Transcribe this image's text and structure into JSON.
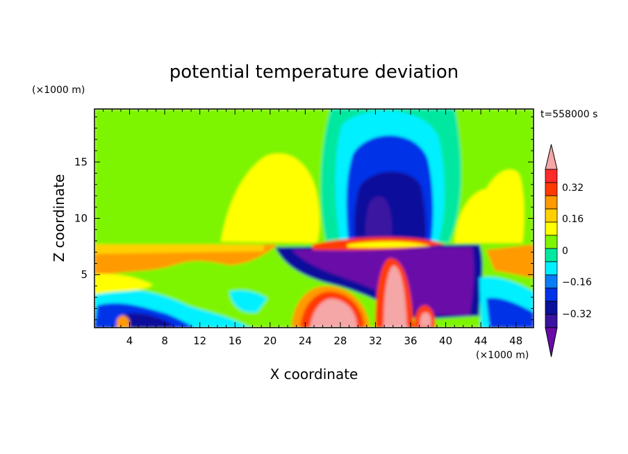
{
  "chart_data": {
    "type": "heatmap",
    "title": "potential temperature deviation",
    "xlabel": "X coordinate",
    "ylabel": "Z coordinate",
    "x_unit": "(×1000 m)",
    "y_unit": "(×1000 m)",
    "time_label": "t=558000 s",
    "xlim": [
      0,
      50
    ],
    "ylim": [
      0.3,
      19.7
    ],
    "x_ticks": [
      "4",
      "8",
      "12",
      "16",
      "20",
      "24",
      "28",
      "32",
      "36",
      "40",
      "44",
      "48"
    ],
    "y_ticks": [
      "5",
      "10",
      "15"
    ],
    "x_tick_values": [
      4,
      8,
      12,
      16,
      20,
      24,
      28,
      32,
      36,
      40,
      44,
      48
    ],
    "y_tick_values": [
      5,
      10,
      15
    ],
    "colorbar": {
      "levels": [
        -0.44,
        -0.4,
        -0.32,
        -0.24,
        -0.16,
        -0.08,
        0,
        0.08,
        0.16,
        0.24,
        0.32,
        0.4,
        0.44
      ],
      "colors": [
        "#6a0aa8",
        "#3a12a0",
        "#0a0f9c",
        "#0032e8",
        "#0a7df5",
        "#00f0ff",
        "#00e8a0",
        "#7ef500",
        "#ffff00",
        "#ffd000",
        "#ff9a00",
        "#ff3a00",
        "#ff2a2a",
        "#f5a6a6"
      ],
      "tick_labels": [
        "0.32",
        "0.16",
        "0",
        "−0.16",
        "−0.32"
      ],
      "tick_values": [
        0.32,
        0.16,
        0,
        -0.16,
        -0.32
      ]
    }
  }
}
